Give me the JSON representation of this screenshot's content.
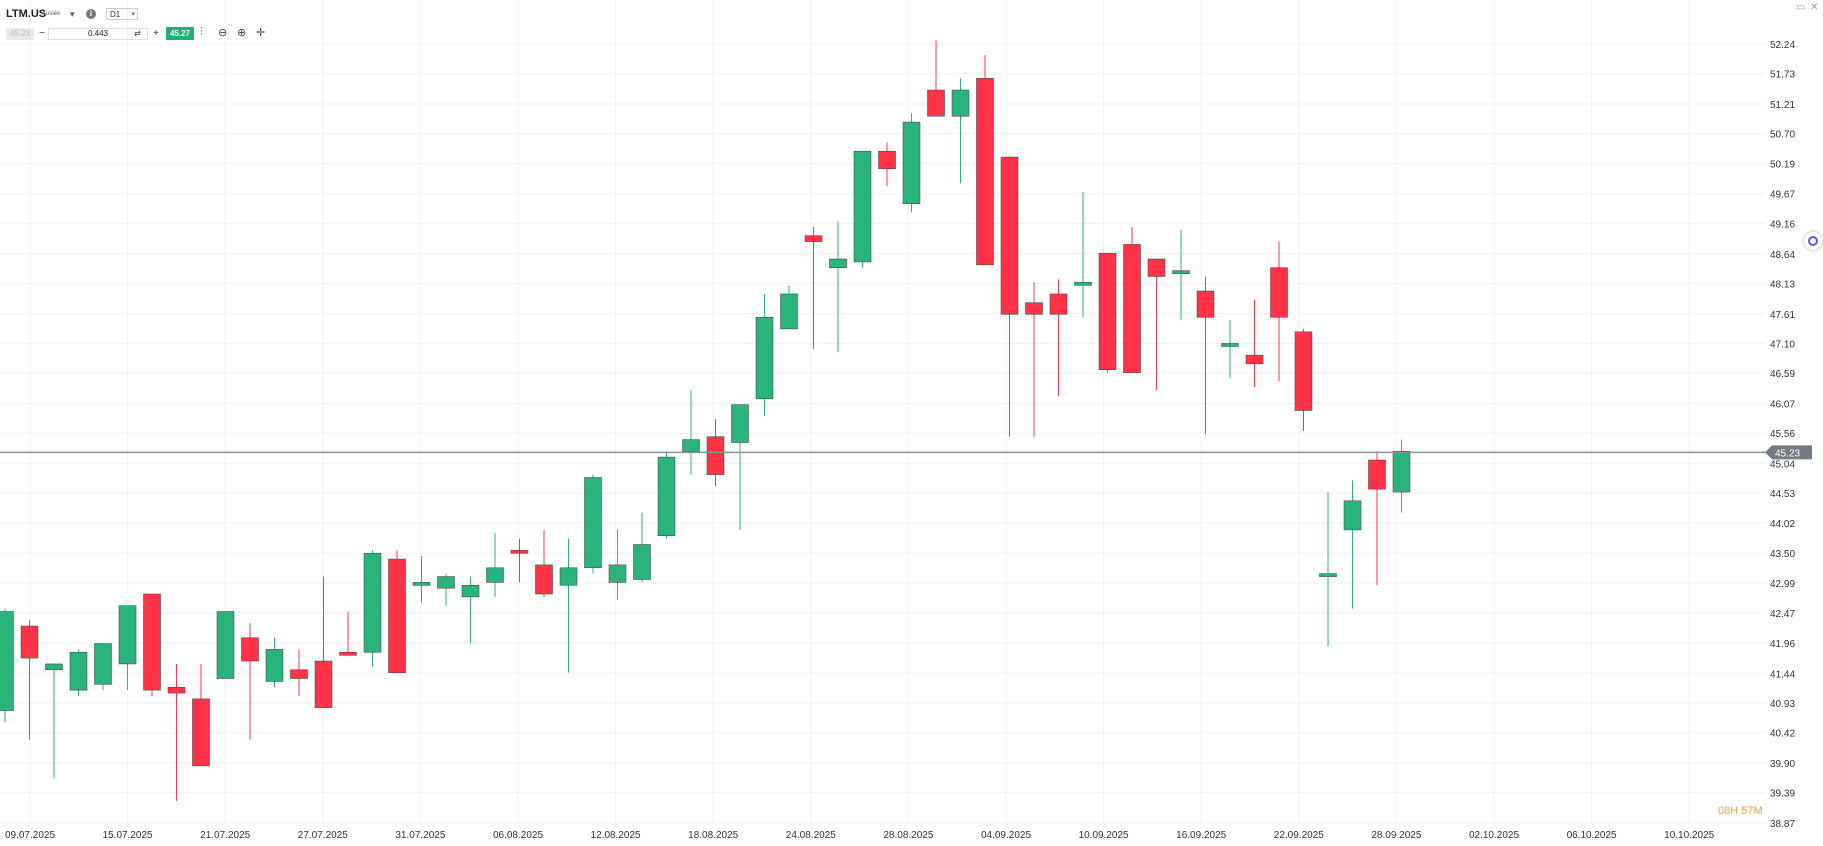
{
  "header": {
    "symbol": "LTM.US",
    "exchange": "Ausiée",
    "timeframe": "D1",
    "sell_price": "45.23",
    "volume": "0.443",
    "buy_price": "45.27"
  },
  "toolbar": {
    "minus_label": "−",
    "plus_label": "+",
    "swap_icon": "swap-icon",
    "tools": [
      "candles-icon",
      "zoom-out-icon",
      "zoom-in-icon",
      "crosshair-icon"
    ]
  },
  "timer": "08H 57M",
  "colors": {
    "up": "#2bb37c",
    "down": "#ff3347",
    "grid": "#f1f1f1",
    "price_line": "#8a9096",
    "price_tag": "#737b82",
    "axis_text": "#333333"
  },
  "chart_data": {
    "type": "candlestick",
    "current_price": 45.23,
    "ylim": [
      38.87,
      52.24
    ],
    "y_ticks": [
      52.24,
      51.73,
      51.21,
      50.7,
      50.19,
      49.67,
      49.16,
      48.64,
      48.13,
      47.61,
      47.1,
      46.59,
      46.07,
      45.56,
      45.04,
      44.53,
      44.02,
      43.5,
      42.99,
      42.47,
      41.96,
      41.44,
      40.93,
      40.42,
      39.9,
      39.39,
      38.87
    ],
    "x_ticks": [
      "09.07.2025",
      "15.07.2025",
      "21.07.2025",
      "27.07.2025",
      "31.07.2025",
      "06.08.2025",
      "12.08.2025",
      "18.08.2025",
      "24.08.2025",
      "28.08.2025",
      "04.09.2025",
      "10.09.2025",
      "16.09.2025",
      "22.09.2025",
      "28.09.2025",
      "02.10.2025",
      "06.10.2025",
      "10.10.2025"
    ],
    "candles": [
      {
        "o": 40.8,
        "h": 42.55,
        "l": 40.6,
        "c": 42.5
      },
      {
        "o": 42.25,
        "h": 42.35,
        "l": 40.3,
        "c": 41.7
      },
      {
        "o": 41.5,
        "h": 41.6,
        "l": 39.63,
        "c": 41.6
      },
      {
        "o": 41.15,
        "h": 41.85,
        "l": 41.05,
        "c": 41.8
      },
      {
        "o": 41.25,
        "h": 41.95,
        "l": 41.15,
        "c": 41.95
      },
      {
        "o": 41.6,
        "h": 42.6,
        "l": 41.15,
        "c": 42.6
      },
      {
        "o": 42.8,
        "h": 42.8,
        "l": 41.05,
        "c": 41.15
      },
      {
        "o": 41.2,
        "h": 41.6,
        "l": 39.25,
        "c": 41.1
      },
      {
        "o": 41.0,
        "h": 41.6,
        "l": 39.85,
        "c": 39.85
      },
      {
        "o": 41.35,
        "h": 42.5,
        "l": 41.35,
        "c": 42.5
      },
      {
        "o": 42.05,
        "h": 42.3,
        "l": 40.3,
        "c": 41.65
      },
      {
        "o": 41.3,
        "h": 42.05,
        "l": 41.2,
        "c": 41.85
      },
      {
        "o": 41.5,
        "h": 41.85,
        "l": 41.05,
        "c": 41.35
      },
      {
        "o": 41.65,
        "h": 43.1,
        "l": 40.85,
        "c": 40.85
      },
      {
        "o": 41.8,
        "h": 42.5,
        "l": 41.75,
        "c": 41.75
      },
      {
        "o": 41.8,
        "h": 43.55,
        "l": 41.55,
        "c": 43.5
      },
      {
        "o": 43.4,
        "h": 43.55,
        "l": 41.45,
        "c": 41.45
      },
      {
        "o": 42.95,
        "h": 43.45,
        "l": 42.65,
        "c": 43.0
      },
      {
        "o": 42.9,
        "h": 43.15,
        "l": 42.6,
        "c": 43.1
      },
      {
        "o": 42.75,
        "h": 43.1,
        "l": 41.95,
        "c": 42.95
      },
      {
        "o": 43.0,
        "h": 43.85,
        "l": 42.75,
        "c": 43.25
      },
      {
        "o": 43.55,
        "h": 43.75,
        "l": 43.0,
        "c": 43.5
      },
      {
        "o": 43.3,
        "h": 43.9,
        "l": 42.75,
        "c": 42.8
      },
      {
        "o": 42.95,
        "h": 43.75,
        "l": 41.45,
        "c": 43.25
      },
      {
        "o": 43.25,
        "h": 44.85,
        "l": 43.15,
        "c": 44.8
      },
      {
        "o": 43.0,
        "h": 43.9,
        "l": 42.7,
        "c": 43.3
      },
      {
        "o": 43.05,
        "h": 44.2,
        "l": 43.0,
        "c": 43.65
      },
      {
        "o": 43.8,
        "h": 45.25,
        "l": 43.75,
        "c": 45.15
      },
      {
        "o": 45.25,
        "h": 46.3,
        "l": 44.85,
        "c": 45.45
      },
      {
        "o": 45.5,
        "h": 45.8,
        "l": 44.65,
        "c": 44.85
      },
      {
        "o": 45.4,
        "h": 46.05,
        "l": 43.9,
        "c": 46.05
      },
      {
        "o": 46.15,
        "h": 47.95,
        "l": 45.85,
        "c": 47.55
      },
      {
        "o": 47.35,
        "h": 48.1,
        "l": 47.35,
        "c": 47.95
      },
      {
        "o": 48.95,
        "h": 49.1,
        "l": 47.0,
        "c": 48.85
      },
      {
        "o": 48.4,
        "h": 49.2,
        "l": 46.95,
        "c": 48.55
      },
      {
        "o": 48.5,
        "h": 50.4,
        "l": 48.4,
        "c": 50.4
      },
      {
        "o": 50.4,
        "h": 50.55,
        "l": 49.8,
        "c": 50.1
      },
      {
        "o": 49.5,
        "h": 51.05,
        "l": 49.35,
        "c": 50.9
      },
      {
        "o": 51.45,
        "h": 52.3,
        "l": 51.0,
        "c": 51.0
      },
      {
        "o": 51.0,
        "h": 51.65,
        "l": 49.85,
        "c": 51.45
      },
      {
        "o": 51.65,
        "h": 52.05,
        "l": 48.45,
        "c": 48.45
      },
      {
        "o": 50.3,
        "h": 50.3,
        "l": 45.5,
        "c": 47.6
      },
      {
        "o": 47.8,
        "h": 48.15,
        "l": 45.5,
        "c": 47.6
      },
      {
        "o": 47.95,
        "h": 48.2,
        "l": 46.2,
        "c": 47.6
      },
      {
        "o": 48.15,
        "h": 49.7,
        "l": 47.55,
        "c": 48.15
      },
      {
        "o": 48.65,
        "h": 48.65,
        "l": 46.6,
        "c": 46.65
      },
      {
        "o": 48.8,
        "h": 49.1,
        "l": 46.6,
        "c": 46.6
      },
      {
        "o": 48.55,
        "h": 48.55,
        "l": 46.3,
        "c": 48.25
      },
      {
        "o": 48.3,
        "h": 49.05,
        "l": 47.5,
        "c": 48.35
      },
      {
        "o": 48.0,
        "h": 48.25,
        "l": 45.55,
        "c": 47.55
      },
      {
        "o": 47.1,
        "h": 47.5,
        "l": 46.5,
        "c": 47.1
      },
      {
        "o": 46.9,
        "h": 47.85,
        "l": 46.35,
        "c": 46.75
      },
      {
        "o": 48.4,
        "h": 48.85,
        "l": 46.45,
        "c": 47.55
      },
      {
        "o": 47.3,
        "h": 47.35,
        "l": 45.6,
        "c": 45.95
      },
      {
        "o": 43.1,
        "h": 44.55,
        "l": 41.9,
        "c": 43.15
      },
      {
        "o": 43.9,
        "h": 44.75,
        "l": 42.55,
        "c": 44.4
      },
      {
        "o": 45.1,
        "h": 45.25,
        "l": 42.95,
        "c": 44.6
      },
      {
        "o": 44.55,
        "h": 45.45,
        "l": 44.2,
        "c": 45.25
      }
    ]
  }
}
